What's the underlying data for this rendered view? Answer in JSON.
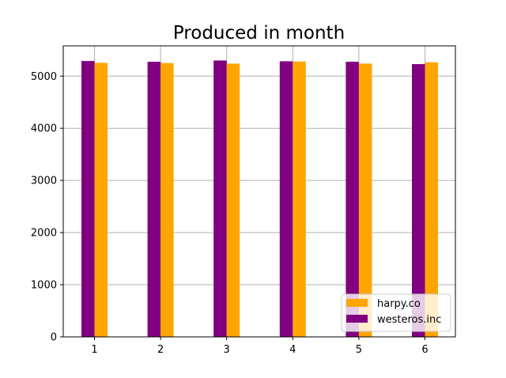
{
  "chart_data": {
    "type": "bar",
    "title": "Produced in month",
    "xlabel": "",
    "ylabel": "",
    "categories": [
      "1",
      "2",
      "3",
      "4",
      "5",
      "6"
    ],
    "series": [
      {
        "name": "westeros.inc",
        "color": "#800080",
        "values": [
          5290,
          5275,
          5300,
          5285,
          5275,
          5230
        ]
      },
      {
        "name": "harpy.co",
        "color": "#ffa500",
        "values": [
          5255,
          5250,
          5240,
          5280,
          5240,
          5265
        ]
      }
    ],
    "ylim": [
      0,
      5580
    ],
    "yticks": [
      0,
      1000,
      2000,
      3000,
      4000,
      5000
    ],
    "grid": true,
    "legend_order": [
      "harpy.co",
      "westeros.inc"
    ],
    "legend_position": "lower-right"
  }
}
